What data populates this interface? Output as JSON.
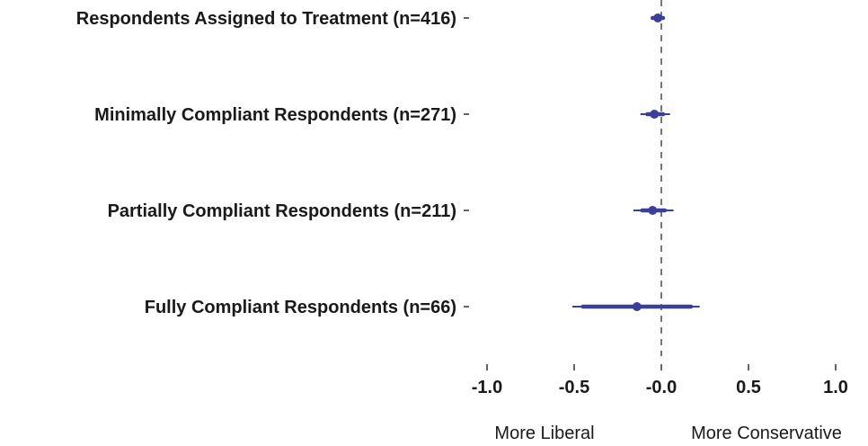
{
  "chart_data": {
    "type": "scatter",
    "categories": [
      "Respondents Assigned to Treatment (n=416)",
      "Minimally Compliant Respondents (n=271)",
      "Partially Compliant Respondents (n=211)",
      "Fully Compliant Respondents (n=66)"
    ],
    "estimates": [
      -0.02,
      -0.04,
      -0.05,
      -0.14
    ],
    "ci_inner": [
      [
        -0.05,
        0.01
      ],
      [
        -0.08,
        0.01
      ],
      [
        -0.11,
        0.02
      ],
      [
        -0.45,
        0.17
      ]
    ],
    "ci_outer": [
      [
        -0.06,
        0.02
      ],
      [
        -0.12,
        0.05
      ],
      [
        -0.16,
        0.07
      ],
      [
        -0.51,
        0.22
      ]
    ],
    "xlim": [
      -1.1,
      1.1
    ],
    "x_ticks": [
      -1.0,
      -0.5,
      0.0,
      0.5,
      1.0
    ],
    "x_tick_labels": [
      "-1.0",
      "-0.5",
      "-0.0",
      "0.5",
      "1.0"
    ],
    "reference_line": 0,
    "direction_labels": {
      "left": "More  Liberal",
      "right": "More Conservative"
    },
    "series_color": "#3b3f99",
    "reference_line_color": "#777777",
    "grid": false,
    "legend": "none"
  }
}
